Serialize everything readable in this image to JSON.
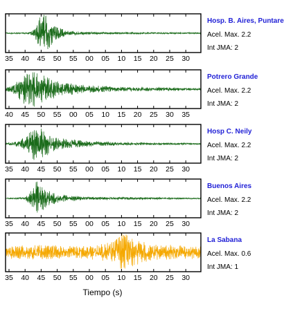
{
  "figure": {
    "xlabel": "Tiempo (s)"
  },
  "chart_data": [
    {
      "type": "line",
      "title": "Hosp. B. Aires, Puntare",
      "stats": [
        "Acel. Max. 2.2",
        "Int JMA: 2"
      ],
      "color": "#1a6b1a",
      "tick_labels": [
        "35",
        "40",
        "45",
        "50",
        "55",
        "00",
        "05",
        "10",
        "15",
        "20",
        "25",
        "30"
      ],
      "x_range_seconds": [
        33,
        94
      ],
      "series": [
        {
          "envelope": [
            {
              "t": 33,
              "a": 0.03
            },
            {
              "t": 40,
              "a": 0.04
            },
            {
              "t": 42,
              "a": 0.2
            },
            {
              "t": 44,
              "a": 0.95
            },
            {
              "t": 46,
              "a": 0.9
            },
            {
              "t": 48,
              "a": 0.5
            },
            {
              "t": 52,
              "a": 0.12
            },
            {
              "t": 60,
              "a": 0.06
            },
            {
              "t": 94,
              "a": 0.03
            }
          ]
        }
      ]
    },
    {
      "type": "line",
      "title": "Potrero Grande",
      "stats": [
        "Acel. Max. 2.2",
        "Int JMA: 2"
      ],
      "color": "#1a6b1a",
      "tick_labels": [
        "40",
        "45",
        "50",
        "55",
        "00",
        "05",
        "10",
        "15",
        "20",
        "25",
        "30",
        "35"
      ],
      "x_range_seconds": [
        36,
        95
      ],
      "series": [
        {
          "envelope": [
            {
              "t": 36,
              "a": 0.08
            },
            {
              "t": 39,
              "a": 0.3
            },
            {
              "t": 42,
              "a": 0.8
            },
            {
              "t": 45,
              "a": 0.95
            },
            {
              "t": 48,
              "a": 0.65
            },
            {
              "t": 52,
              "a": 0.35
            },
            {
              "t": 60,
              "a": 0.2
            },
            {
              "t": 70,
              "a": 0.12
            },
            {
              "t": 95,
              "a": 0.06
            }
          ]
        }
      ]
    },
    {
      "type": "line",
      "title": "Hosp C. Neily",
      "stats": [
        "Acel. Max. 2.2",
        "Int JMA: 2"
      ],
      "color": "#1a6b1a",
      "tick_labels": [
        "35",
        "40",
        "45",
        "50",
        "55",
        "00",
        "05",
        "10",
        "15",
        "20",
        "25",
        "30"
      ],
      "x_range_seconds": [
        34,
        94
      ],
      "series": [
        {
          "envelope": [
            {
              "t": 34,
              "a": 0.05
            },
            {
              "t": 38,
              "a": 0.15
            },
            {
              "t": 41,
              "a": 0.45
            },
            {
              "t": 43,
              "a": 0.95
            },
            {
              "t": 46,
              "a": 0.6
            },
            {
              "t": 50,
              "a": 0.3
            },
            {
              "t": 58,
              "a": 0.15
            },
            {
              "t": 70,
              "a": 0.08
            },
            {
              "t": 94,
              "a": 0.04
            }
          ]
        }
      ]
    },
    {
      "type": "line",
      "title": "Buenos Aires",
      "stats": [
        "Acel. Max. 2.2",
        "Int JMA: 2"
      ],
      "color": "#1a6b1a",
      "tick_labels": [
        "35",
        "40",
        "45",
        "50",
        "55",
        "00",
        "05",
        "10",
        "15",
        "20",
        "25",
        "30"
      ],
      "x_range_seconds": [
        34,
        94
      ],
      "series": [
        {
          "envelope": [
            {
              "t": 34,
              "a": 0.03
            },
            {
              "t": 40,
              "a": 0.05
            },
            {
              "t": 42,
              "a": 0.4
            },
            {
              "t": 43.5,
              "a": 0.95
            },
            {
              "t": 46,
              "a": 0.55
            },
            {
              "t": 50,
              "a": 0.2
            },
            {
              "t": 58,
              "a": 0.08
            },
            {
              "t": 94,
              "a": 0.03
            }
          ]
        }
      ]
    },
    {
      "type": "line",
      "title": "La Sabana",
      "stats": [
        "Acel. Max. 0.6",
        "Int JMA: 1"
      ],
      "color": "#f5a800",
      "tick_labels": [
        "35",
        "40",
        "45",
        "50",
        "55",
        "00",
        "05",
        "10",
        "15",
        "20",
        "25",
        "30"
      ],
      "x_range_seconds": [
        34,
        94
      ],
      "series": [
        {
          "envelope": [
            {
              "t": 34,
              "a": 0.3
            },
            {
              "t": 45,
              "a": 0.35
            },
            {
              "t": 55,
              "a": 0.32
            },
            {
              "t": 62,
              "a": 0.35
            },
            {
              "t": 66,
              "a": 0.5
            },
            {
              "t": 70,
              "a": 0.95
            },
            {
              "t": 73,
              "a": 0.7
            },
            {
              "t": 78,
              "a": 0.4
            },
            {
              "t": 94,
              "a": 0.3
            }
          ]
        }
      ]
    }
  ]
}
